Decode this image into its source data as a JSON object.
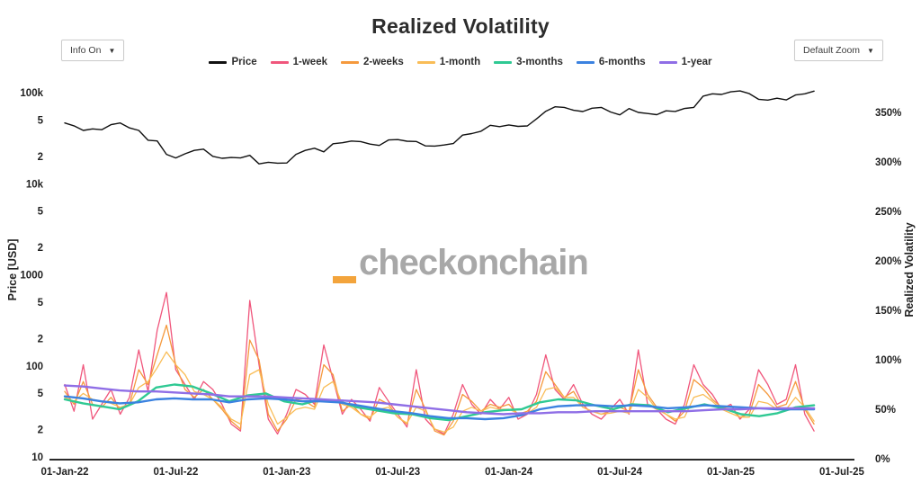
{
  "title": "Realized Volatility",
  "controls": {
    "info_button": {
      "label": "Info On",
      "arrow": "▼"
    },
    "zoom_button": {
      "label": "Default Zoom",
      "arrow": "▼"
    }
  },
  "watermark": {
    "underscore": "_",
    "text": "checkonchain"
  },
  "chart_data": {
    "type": "line",
    "title": "Realized Volatility",
    "grid": false,
    "legend_position": "top-center",
    "t_unit": "months since 01-Jan-2022",
    "t_end": 40.5,
    "x_axis": {
      "ticks": [
        {
          "label": "01-Jan-22",
          "t": 0
        },
        {
          "label": "01-Jul-22",
          "t": 6
        },
        {
          "label": "01-Jan-23",
          "t": 12
        },
        {
          "label": "01-Jul-23",
          "t": 18
        },
        {
          "label": "01-Jan-24",
          "t": 24
        },
        {
          "label": "01-Jul-24",
          "t": 30
        },
        {
          "label": "01-Jan-25",
          "t": 36
        },
        {
          "label": "01-Jul-25",
          "t": 42
        }
      ]
    },
    "price_axis": {
      "label": "Price [USD]",
      "scale": "log",
      "range": [
        10,
        150000
      ],
      "ticks": [
        {
          "label": "100k",
          "value": 100000
        },
        {
          "label": "5",
          "value": 50000
        },
        {
          "label": "2",
          "value": 20000
        },
        {
          "label": "10k",
          "value": 10000
        },
        {
          "label": "5",
          "value": 5000
        },
        {
          "label": "2",
          "value": 2000
        },
        {
          "label": "1000",
          "value": 1000
        },
        {
          "label": "5",
          "value": 500
        },
        {
          "label": "2",
          "value": 200
        },
        {
          "label": "100",
          "value": 100
        },
        {
          "label": "5",
          "value": 50
        },
        {
          "label": "2",
          "value": 20
        },
        {
          "label": "10",
          "value": 10
        }
      ]
    },
    "vol_axis": {
      "label": "Realized Volatility",
      "scale": "linear",
      "range_pct": [
        0,
        363
      ],
      "ticks": [
        {
          "label": "350%",
          "value": 350
        },
        {
          "label": "300%",
          "value": 300
        },
        {
          "label": "250%",
          "value": 250
        },
        {
          "label": "200%",
          "value": 200
        },
        {
          "label": "150%",
          "value": 150
        },
        {
          "label": "100%",
          "value": 100
        },
        {
          "label": "50%",
          "value": 50
        },
        {
          "label": "0%",
          "value": 0
        }
      ]
    },
    "series": [
      {
        "name": "Price",
        "color": "#111111",
        "axis": "price",
        "width": 1.4,
        "unit": "USD",
        "values": [
          46500,
          43200,
          38500,
          40000,
          39200,
          44500,
          46500,
          41000,
          38500,
          30000,
          29500,
          21000,
          19200,
          21300,
          23200,
          24000,
          20000,
          19000,
          19400,
          19200,
          20500,
          16500,
          17200,
          16800,
          16900,
          21000,
          23200,
          24500,
          22400,
          27500,
          28200,
          29400,
          29000,
          27200,
          26300,
          30200,
          30500,
          29300,
          29100,
          26000,
          25900,
          26600,
          27600,
          34200,
          35500,
          37700,
          43800,
          42300,
          44200,
          42600,
          43100,
          51500,
          62500,
          70000,
          68800,
          64100,
          62000,
          67500,
          68900,
          61300,
          57000,
          66800,
          60700,
          59000,
          57300,
          63200,
          62100,
          67000,
          68800,
          91500,
          97000,
          95500,
          102000,
          104500,
          97500,
          84500,
          82800,
          86900,
          83100,
          94200,
          97000,
          104000
        ]
      },
      {
        "name": "1-week",
        "color": "#f0567c",
        "axis": "vol",
        "width": 1.3,
        "unit": "%",
        "values": [
          75,
          48,
          95,
          40,
          55,
          70,
          45,
          62,
          110,
          68,
          130,
          168,
          90,
          75,
          60,
          78,
          70,
          55,
          35,
          28,
          160,
          95,
          40,
          25,
          45,
          70,
          65,
          55,
          115,
          80,
          45,
          60,
          50,
          38,
          72,
          58,
          45,
          32,
          90,
          40,
          30,
          25,
          45,
          75,
          55,
          45,
          60,
          50,
          62,
          40,
          45,
          65,
          105,
          70,
          60,
          75,
          55,
          45,
          40,
          50,
          60,
          45,
          110,
          55,
          50,
          40,
          35,
          55,
          95,
          75,
          65,
          50,
          55,
          40,
          50,
          90,
          75,
          55,
          60,
          95,
          45,
          28
        ]
      },
      {
        "name": "2-weeks",
        "color": "#f5993d",
        "axis": "vol",
        "width": 1.3,
        "unit": "%",
        "values": [
          68,
          55,
          78,
          55,
          52,
          62,
          50,
          55,
          90,
          75,
          105,
          135,
          95,
          70,
          62,
          70,
          60,
          50,
          38,
          30,
          120,
          100,
          45,
          28,
          40,
          60,
          58,
          52,
          95,
          85,
          48,
          55,
          45,
          40,
          60,
          55,
          42,
          35,
          70,
          50,
          28,
          24,
          38,
          65,
          58,
          48,
          55,
          52,
          55,
          45,
          48,
          58,
          88,
          75,
          62,
          68,
          52,
          48,
          45,
          48,
          52,
          48,
          90,
          65,
          52,
          45,
          38,
          48,
          80,
          72,
          60,
          52,
          50,
          42,
          45,
          75,
          65,
          52,
          55,
          78,
          50,
          35
        ]
      },
      {
        "name": "1-month",
        "color": "#f9bd57",
        "axis": "vol",
        "width": 1.3,
        "unit": "%",
        "values": [
          62,
          58,
          66,
          60,
          58,
          56,
          52,
          55,
          72,
          78,
          92,
          108,
          95,
          85,
          68,
          65,
          60,
          52,
          40,
          35,
          85,
          90,
          55,
          35,
          42,
          50,
          52,
          50,
          72,
          78,
          55,
          52,
          45,
          42,
          50,
          52,
          42,
          36,
          52,
          48,
          30,
          27,
          32,
          48,
          52,
          48,
          52,
          50,
          50,
          46,
          46,
          52,
          70,
          72,
          62,
          62,
          52,
          48,
          45,
          46,
          48,
          46,
          70,
          62,
          50,
          45,
          40,
          42,
          62,
          65,
          58,
          50,
          46,
          42,
          42,
          58,
          56,
          50,
          50,
          62,
          52,
          38
        ]
      },
      {
        "name": "3-months",
        "color": "#2fc993",
        "axis": "vol",
        "width": 2.4,
        "unit": "%",
        "values": [
          60,
          56,
          53,
          50,
          58,
          72,
          75,
          73,
          66,
          58,
          64,
          66,
          58,
          55,
          60,
          58,
          52,
          49,
          46,
          45,
          41,
          39,
          43,
          47,
          49,
          50,
          57,
          60,
          59,
          54,
          50,
          55,
          54,
          47,
          51,
          55,
          51,
          45,
          43,
          46,
          52,
          54
        ]
      },
      {
        "name": "6-months",
        "color": "#3b82e0",
        "axis": "vol",
        "width": 2.4,
        "unit": "%",
        "values": [
          63,
          61,
          58,
          56,
          57,
          60,
          61,
          60,
          60,
          57,
          60,
          61,
          60,
          58,
          58,
          57,
          54,
          51,
          48,
          46,
          43,
          41,
          41,
          40,
          41,
          44,
          50,
          53,
          54,
          54,
          53,
          54,
          53,
          51,
          52,
          54,
          53,
          52,
          51,
          50,
          50,
          50
        ]
      },
      {
        "name": "1-year",
        "color": "#8f6ee6",
        "axis": "vol",
        "width": 2.4,
        "unit": "%",
        "values": [
          74,
          73,
          71,
          69,
          68,
          68,
          67,
          66,
          65,
          63,
          63,
          63,
          62,
          61,
          60,
          59,
          58,
          57,
          55,
          53,
          51,
          49,
          47,
          46,
          45,
          46,
          46,
          47,
          47,
          48,
          48,
          48,
          48,
          48,
          48,
          49,
          50,
          50,
          51,
          51,
          51,
          51
        ]
      }
    ]
  }
}
